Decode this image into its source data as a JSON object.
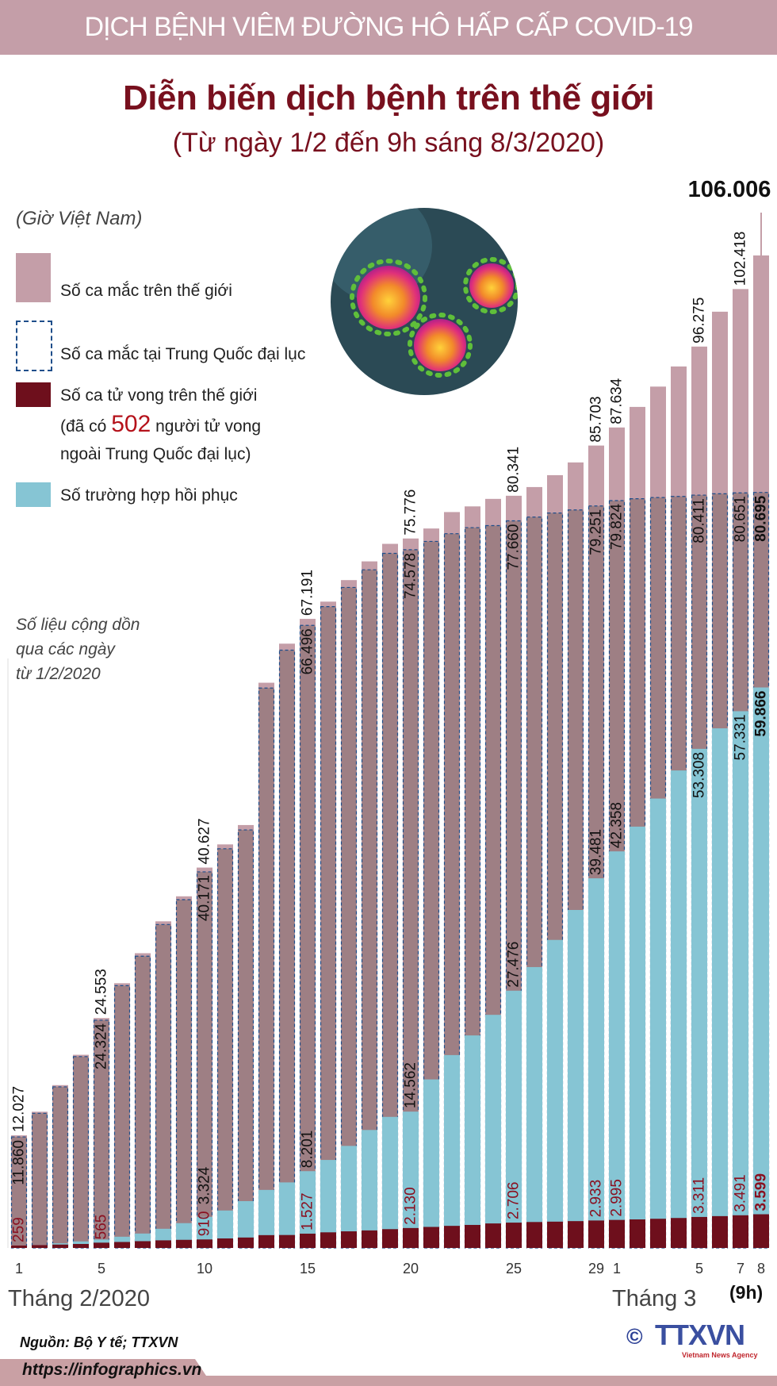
{
  "header": {
    "band_title": "DỊCH BỆNH VIÊM ĐƯỜNG HÔ HẤP CẤP COVID-19"
  },
  "title": "Diễn biến dịch bệnh trên thế giới",
  "subtitle": "(Từ ngày 1/2 đến 9h sáng 8/3/2020)",
  "timezone_note": "(Giờ Việt Nam)",
  "legend": {
    "world_cases": "Số ca mắc trên thế giới",
    "china_cases": "Số ca mắc tại Trung Quốc đại lục",
    "world_deaths": "Số ca tử vong trên thế giới",
    "deaths_note_prefix": "(đã có",
    "deaths_note_number": "502",
    "deaths_note_suffix": "người tử vong",
    "deaths_note_line2": "ngoài Trung Quốc đại lục)",
    "recovered": "Số trường hợp hồi phục"
  },
  "cumulative_note": [
    "Số liệu cộng dồn",
    "qua các ngày",
    "từ 1/2/2020"
  ],
  "colors": {
    "world": "#c49ea8",
    "china": "#9e7f84",
    "china_border": "#1f4e8a",
    "deaths": "#6e0f1c",
    "recovered": "#86c5d4",
    "title": "#78101e",
    "band": "#c49ea8"
  },
  "chart_data": {
    "type": "bar",
    "categories": [
      "1/2",
      "2/2",
      "3/2",
      "4/2",
      "5/2",
      "6/2",
      "7/2",
      "8/2",
      "9/2",
      "10/2",
      "11/2",
      "12/2",
      "13/2",
      "14/2",
      "15/2",
      "16/2",
      "17/2",
      "18/2",
      "19/2",
      "20/2",
      "21/2",
      "22/2",
      "23/2",
      "24/2",
      "25/2",
      "26/2",
      "27/2",
      "28/2",
      "29/2",
      "1/3",
      "2/3",
      "3/3",
      "4/3",
      "5/3",
      "6/3",
      "7/3",
      "8/3"
    ],
    "x_tick_labels": [
      {
        "day": "1/2",
        "text": "1"
      },
      {
        "day": "5/2",
        "text": "5"
      },
      {
        "day": "10/2",
        "text": "10"
      },
      {
        "day": "15/2",
        "text": "15"
      },
      {
        "day": "20/2",
        "text": "20"
      },
      {
        "day": "25/2",
        "text": "25"
      },
      {
        "day": "29/2",
        "text": "29"
      },
      {
        "day": "1/3",
        "text": "1"
      },
      {
        "day": "5/3",
        "text": "5"
      },
      {
        "day": "7/3",
        "text": "7"
      },
      {
        "day": "8/3",
        "text": "8"
      }
    ],
    "last_day_note": "(9h)",
    "month_labels": {
      "feb": "Tháng 2/2020",
      "mar": "Tháng 3"
    },
    "series": [
      {
        "name": "Số ca mắc trên thế giới",
        "key": "world",
        "values": [
          12027,
          14550,
          17390,
          20630,
          24553,
          28276,
          31481,
          34886,
          37558,
          40627,
          43103,
          45171,
          60371,
          64543,
          67191,
          69032,
          71332,
          73332,
          75204,
          75776,
          76843,
          78599,
          79205,
          80006,
          80341,
          81270,
          82540,
          83900,
          85703,
          87634,
          89830,
          92000,
          94150,
          96275,
          100000,
          102418,
          106006
        ]
      },
      {
        "name": "Số ca mắc tại Trung Quốc đại lục",
        "key": "china",
        "values": [
          11860,
          14380,
          17205,
          20438,
          24324,
          28018,
          31161,
          34546,
          37198,
          40171,
          42638,
          44653,
          59804,
          63851,
          66496,
          68500,
          70548,
          72436,
          74185,
          74578,
          75465,
          76288,
          76936,
          77150,
          77660,
          78064,
          78497,
          78824,
          79251,
          79824,
          80026,
          80151,
          80270,
          80411,
          80552,
          80651,
          80695
        ]
      },
      {
        "name": "Số ca tử vong trên thế giới",
        "key": "deaths",
        "values": [
          259,
          304,
          362,
          426,
          565,
          638,
          724,
          813,
          868,
          910,
          1018,
          1115,
          1369,
          1383,
          1527,
          1669,
          1775,
          1873,
          2009,
          2130,
          2247,
          2360,
          2460,
          2618,
          2706,
          2770,
          2810,
          2867,
          2933,
          2995,
          3050,
          3117,
          3200,
          3311,
          3400,
          3491,
          3599
        ]
      },
      {
        "name": "Số trường hợp hồi phục",
        "key": "recovered",
        "values": [
          200,
          300,
          500,
          700,
          900,
          1200,
          1540,
          2050,
          2650,
          3324,
          4000,
          5000,
          6200,
          7000,
          8201,
          9400,
          10900,
          12600,
          14000,
          14562,
          18000,
          20600,
          22700,
          24900,
          27476,
          30000,
          32900,
          36100,
          39481,
          42358,
          45000,
          48000,
          51000,
          53308,
          55500,
          57331,
          59866
        ]
      }
    ],
    "labeled_days": {
      "world": [
        "1/2",
        "5/2",
        "10/2",
        "15/2",
        "20/2",
        "25/2",
        "29/2",
        "1/3",
        "5/3",
        "7/3",
        "8/3"
      ],
      "china": [
        "1/2",
        "5/2",
        "10/2",
        "15/2",
        "20/2",
        "25/2",
        "29/2",
        "1/3",
        "5/3",
        "7/3",
        "8/3"
      ],
      "deaths": [
        "1/2",
        "5/2",
        "10/2",
        "15/2",
        "20/2",
        "25/2",
        "29/2",
        "1/3",
        "5/3",
        "7/3",
        "8/3"
      ],
      "recovered": [
        "10/2",
        "15/2",
        "20/2",
        "25/2",
        "29/2",
        "1/3",
        "5/3",
        "7/3",
        "8/3"
      ]
    },
    "ylim": [
      0,
      106006
    ],
    "grid": false,
    "legend_placement": "top-left"
  },
  "footer": {
    "source": "Nguồn: Bộ Y tế; TTXVN",
    "url": "https://infographics.vn",
    "logo_text": "TTXVN",
    "logo_subtext": "Vietnam News Agency",
    "copyright": "©"
  }
}
